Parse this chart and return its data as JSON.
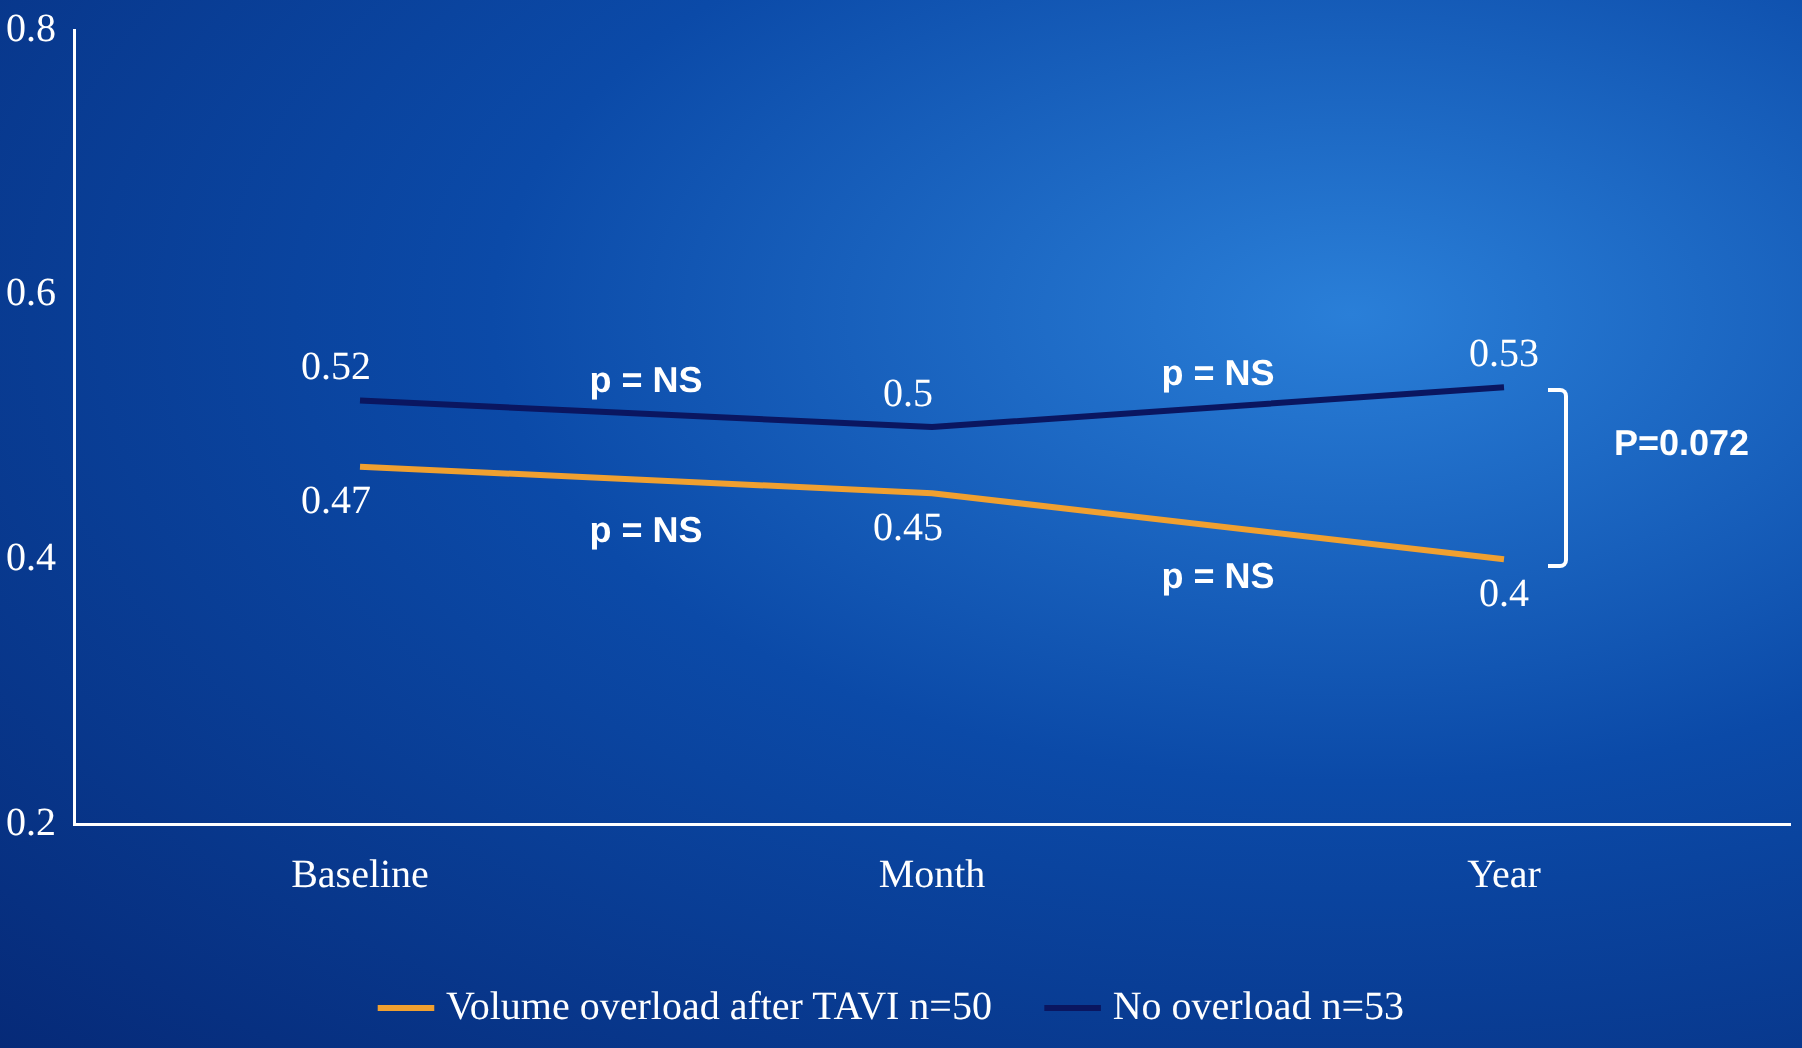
{
  "chart_data": {
    "type": "line",
    "categories": [
      "Baseline",
      "Month",
      "Year"
    ],
    "series": [
      {
        "name": "Volume overload after TAVI n=50",
        "color": "#f0a030",
        "values": [
          0.47,
          0.45,
          0.4
        ]
      },
      {
        "name": "No overload n=53",
        "color": "#0a1660",
        "values": [
          0.52,
          0.5,
          0.53
        ]
      }
    ],
    "ylim": [
      0.2,
      0.8
    ],
    "yticks": [
      {
        "value": 0.2,
        "label": "0.2"
      },
      {
        "value": 0.4,
        "label": "0.4"
      },
      {
        "value": 0.6,
        "label": "0.6"
      },
      {
        "value": 0.8,
        "label": "0.8"
      }
    ],
    "grid": false,
    "legend": "bottom",
    "marker": "none",
    "line_style": "solid",
    "data_labels": true,
    "annotations": [
      "p = NS",
      "p = NS",
      "p = NS",
      "p = NS",
      "P=0.072"
    ]
  }
}
